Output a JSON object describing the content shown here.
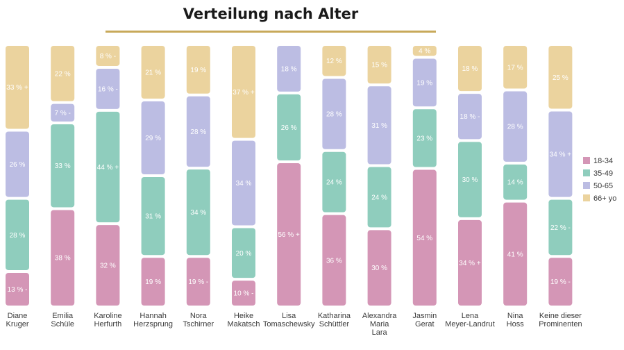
{
  "title": "Verteilung nach Alter",
  "colors": {
    "title_rule": "#c8a95a",
    "18-34": "#d496b6",
    "35-49": "#8fcdbd",
    "50-65": "#bcbde3",
    "66+ yo": "#ebd39e"
  },
  "chart_data": {
    "type": "bar",
    "stacked": true,
    "orientation": "vertical",
    "title": "Verteilung nach Alter",
    "legend_position": "right",
    "categories": [
      "Diane Kruger",
      "Emilia Schüle",
      "Karoline Herfurth",
      "Hannah Herzsprung",
      "Nora Tschirner",
      "Heike Makatsch",
      "Lisa Tomaschewsky",
      "Katharina Schüttler",
      "Alexandra Maria Lara",
      "Jasmin Gerat",
      "Lena Meyer-Landrut",
      "Nina Hoss",
      "Keine dieser Prominenten"
    ],
    "category_lines": [
      [
        "Diane",
        "Kruger"
      ],
      [
        "Emilia",
        "Schüle"
      ],
      [
        "Karoline",
        "Herfurth"
      ],
      [
        "Hannah",
        "Herzsprung"
      ],
      [
        "Nora",
        "Tschirner"
      ],
      [
        "Heike",
        "Makatsch"
      ],
      [
        "Lisa",
        "Tomaschewsky"
      ],
      [
        "Katharina",
        "Schüttler"
      ],
      [
        "Alexandra",
        "Maria",
        "Lara"
      ],
      [
        "Jasmin",
        "Gerat"
      ],
      [
        "Lena",
        "Meyer-Landrut"
      ],
      [
        "Nina",
        "Hoss"
      ],
      [
        "Keine dieser",
        "Prominenten"
      ]
    ],
    "series": [
      {
        "name": "18-34",
        "values": [
          13,
          38,
          32,
          19,
          19,
          10,
          56,
          36,
          30,
          54,
          34,
          41,
          19
        ],
        "labels": [
          "13 % -",
          "38 %",
          "32 %",
          "19 %",
          "19 % -",
          "10 % -",
          "56 % +",
          "36 %",
          "30 %",
          "54 %",
          "34 % +",
          "41 %",
          "19 % -"
        ]
      },
      {
        "name": "35-49",
        "values": [
          28,
          33,
          44,
          31,
          34,
          20,
          26,
          24,
          24,
          23,
          30,
          14,
          22
        ],
        "labels": [
          "28 %",
          "33 %",
          "44 % +",
          "31 %",
          "34 %",
          "20 %",
          "26 %",
          "24 %",
          "24 %",
          "23 %",
          "30 %",
          "14 %",
          "22 % -"
        ]
      },
      {
        "name": "50-65",
        "values": [
          26,
          7,
          16,
          29,
          28,
          34,
          18,
          28,
          31,
          19,
          18,
          28,
          34
        ],
        "labels": [
          "26 %",
          "7 % -",
          "16 % -",
          "29 %",
          "28 %",
          "34 %",
          "18 %",
          "28 %",
          "31 %",
          "19 %",
          "18 % -",
          "28 %",
          "34 % +"
        ]
      },
      {
        "name": "66+ yo",
        "values": [
          33,
          22,
          8,
          21,
          19,
          37,
          0,
          12,
          15,
          4,
          18,
          17,
          25
        ],
        "labels": [
          "33 % +",
          "22 %",
          "8 % -",
          "21 %",
          "19 %",
          "37 % +",
          "",
          "12 %",
          "15 %",
          "4 %",
          "18 %",
          "17 %",
          "25 %"
        ]
      }
    ],
    "legend": [
      "18-34",
      "35-49",
      "50-65",
      "66+ yo"
    ],
    "ylim": [
      0,
      100
    ]
  }
}
